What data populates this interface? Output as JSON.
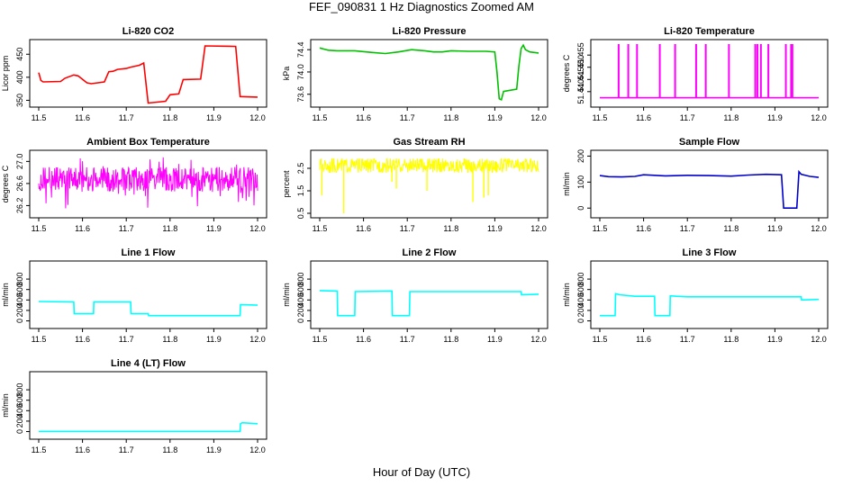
{
  "title": "FEF_090831  1 Hz Diagnostics Zoomed AM",
  "x_axis_title": "Hour of Day (UTC)",
  "x_ticks": [
    "11.5",
    "11.6",
    "11.7",
    "11.8",
    "11.9",
    "12.0"
  ],
  "chart_data": [
    {
      "type": "line",
      "title": "Li-820 CO2",
      "ylabel": "Licor ppm",
      "color": "#ff0000",
      "xlim": [
        11.5,
        12.0
      ],
      "ylim": [
        345,
        472
      ],
      "yticks": [
        "350",
        "400",
        "450"
      ],
      "ytick_values": [
        350,
        400,
        450
      ],
      "series": [
        {
          "x": [
            11.5,
            11.505,
            11.51,
            11.55,
            11.56,
            11.58,
            11.59,
            11.61,
            11.62,
            11.65,
            11.66,
            11.67,
            11.68,
            11.7,
            11.71,
            11.73,
            11.74,
            11.75,
            11.76,
            11.79,
            11.8,
            11.82,
            11.83,
            11.87,
            11.88,
            11.95,
            11.96,
            12.0
          ],
          "y": [
            410,
            393,
            390,
            391,
            398,
            405,
            403,
            388,
            386,
            390,
            412,
            413,
            417,
            419,
            422,
            426,
            431,
            344,
            345,
            348,
            362,
            364,
            395,
            396,
            468,
            467,
            358,
            357
          ]
        }
      ]
    },
    {
      "type": "line",
      "title": "Li-820 Pressure",
      "ylabel": "kPa",
      "color": "#00c000",
      "xlim": [
        11.5,
        12.0
      ],
      "ylim": [
        73.45,
        74.5
      ],
      "yticks": [
        "73.6",
        "74.0",
        "74.4"
      ],
      "ytick_values": [
        73.6,
        74.0,
        74.4
      ],
      "series": [
        {
          "x": [
            11.5,
            11.51,
            11.52,
            11.54,
            11.58,
            11.62,
            11.65,
            11.68,
            11.71,
            11.74,
            11.76,
            11.78,
            11.8,
            11.84,
            11.88,
            11.9,
            11.905,
            11.91,
            11.915,
            11.92,
            11.95,
            11.955,
            11.96,
            11.965,
            11.97,
            11.98,
            12.0
          ],
          "y": [
            74.43,
            74.41,
            74.39,
            74.38,
            74.38,
            74.35,
            74.33,
            74.36,
            74.4,
            74.38,
            74.36,
            74.36,
            74.38,
            74.37,
            74.37,
            74.36,
            74.0,
            73.52,
            73.5,
            73.65,
            73.69,
            74.1,
            74.42,
            74.48,
            74.4,
            74.36,
            74.34
          ]
        }
      ]
    },
    {
      "type": "line",
      "title": "Li-820 Temperature",
      "ylabel": "degrees C",
      "color": "#ff00ff",
      "xlim": [
        11.5,
        12.0
      ],
      "ylim": [
        51.4355,
        51.4595
      ],
      "yticks": [
        "51.440",
        "51.445",
        "51.450",
        "51.455"
      ],
      "ytick_values": [
        51.44,
        51.445,
        51.45,
        51.455
      ],
      "baseline": 51.4375,
      "spike_top": 51.4595,
      "spikes_x": [
        11.543,
        11.565,
        11.585,
        11.637,
        11.672,
        11.72,
        11.742,
        11.795,
        11.855,
        11.86,
        11.868,
        11.885,
        11.925,
        11.937,
        11.94
      ]
    },
    {
      "type": "line",
      "title": "Ambient Box Temperature",
      "ylabel": "degrees C",
      "color": "#ff00ff",
      "xlim": [
        11.5,
        12.0
      ],
      "ylim": [
        26.06,
        27.12
      ],
      "yticks": [
        "26.2",
        "26.6",
        "27.0"
      ],
      "ytick_values": [
        26.2,
        26.6,
        27.0
      ],
      "noise_band": {
        "center": 26.65,
        "low": 26.45,
        "high": 26.9,
        "spike_low": 26.12,
        "spike_high": 27.1
      }
    },
    {
      "type": "line",
      "title": "Gas Stream RH",
      "ylabel": "percent",
      "color": "#ffff00",
      "xlim": [
        11.5,
        12.0
      ],
      "ylim": [
        0.5,
        3.1
      ],
      "yticks": [
        "0.5",
        "1.5",
        "2.5"
      ],
      "ytick_values": [
        0.5,
        1.5,
        2.5
      ],
      "noise_band": {
        "center": 2.6,
        "low": 2.3,
        "high": 2.95
      },
      "dips": [
        {
          "x": 11.505,
          "y": 1.3
        },
        {
          "x": 11.555,
          "y": 0.5
        },
        {
          "x": 11.665,
          "y": 1.9
        },
        {
          "x": 11.675,
          "y": 1.6
        },
        {
          "x": 11.745,
          "y": 1.5
        },
        {
          "x": 11.85,
          "y": 1.0
        },
        {
          "x": 11.875,
          "y": 1.2
        },
        {
          "x": 11.885,
          "y": 1.3
        }
      ]
    },
    {
      "type": "line",
      "title": "Sample Flow",
      "ylabel": "ml/min",
      "color": "#0000cc",
      "xlim": [
        11.5,
        12.0
      ],
      "ylim": [
        -20,
        205
      ],
      "yticks": [
        "0",
        "100",
        "200"
      ],
      "ytick_values": [
        0,
        100,
        200
      ],
      "series": [
        {
          "x": [
            11.5,
            11.52,
            11.55,
            11.58,
            11.6,
            11.65,
            11.7,
            11.75,
            11.8,
            11.84,
            11.88,
            11.915,
            11.92,
            11.95,
            11.955,
            11.96,
            11.98,
            12.0
          ],
          "y": [
            125,
            121,
            120,
            122,
            128,
            124,
            126,
            125,
            123,
            127,
            130,
            128,
            0,
            0,
            140,
            130,
            122,
            118
          ]
        }
      ]
    },
    {
      "type": "line",
      "title": "Line 1 Flow",
      "ylabel": "ml/min",
      "color": "#00ffff",
      "xlim": [
        11.5,
        12.0
      ],
      "ylim": [
        -60,
        1060
      ],
      "yticks": [
        "0",
        "200",
        "400",
        "600",
        "800"
      ],
      "ytick_values": [
        0,
        200,
        400,
        600,
        800
      ],
      "series": [
        {
          "x": [
            11.5,
            11.58,
            11.581,
            11.625,
            11.626,
            11.71,
            11.711,
            11.75,
            11.751,
            11.96,
            11.961,
            12.0
          ],
          "y": [
            370,
            360,
            140,
            140,
            360,
            360,
            140,
            140,
            100,
            100,
            310,
            300
          ]
        }
      ]
    },
    {
      "type": "line",
      "title": "Line 2 Flow",
      "ylabel": "ml/min",
      "color": "#00ffff",
      "xlim": [
        11.5,
        12.0
      ],
      "ylim": [
        -60,
        1060
      ],
      "yticks": [
        "0",
        "200",
        "400",
        "600",
        "800"
      ],
      "ytick_values": [
        0,
        200,
        400,
        600,
        800
      ],
      "series": [
        {
          "x": [
            11.5,
            11.54,
            11.541,
            11.58,
            11.581,
            11.665,
            11.666,
            11.705,
            11.706,
            11.96,
            11.961,
            12.0
          ],
          "y": [
            580,
            570,
            100,
            100,
            560,
            570,
            100,
            100,
            560,
            560,
            500,
            510
          ]
        }
      ]
    },
    {
      "type": "line",
      "title": "Line 3 Flow",
      "ylabel": "ml/min",
      "color": "#00ffff",
      "xlim": [
        11.5,
        12.0
      ],
      "ylim": [
        -60,
        1060
      ],
      "yticks": [
        "0",
        "200",
        "400",
        "600",
        "800"
      ],
      "ytick_values": [
        0,
        200,
        400,
        600,
        800
      ],
      "series": [
        {
          "x": [
            11.5,
            11.535,
            11.536,
            11.545,
            11.58,
            11.625,
            11.626,
            11.66,
            11.661,
            11.675,
            11.7,
            11.96,
            11.961,
            12.0
          ],
          "y": [
            100,
            100,
            520,
            500,
            470,
            470,
            100,
            100,
            480,
            470,
            460,
            460,
            400,
            410
          ]
        }
      ]
    },
    {
      "type": "line",
      "title": "Line 4 (LT) Flow",
      "ylabel": "ml/min",
      "color": "#00ffff",
      "xlim": [
        11.5,
        12.0
      ],
      "ylim": [
        -60,
        1060
      ],
      "yticks": [
        "0",
        "200",
        "400",
        "600",
        "800"
      ],
      "ytick_values": [
        0,
        200,
        400,
        600,
        800
      ],
      "series": [
        {
          "x": [
            11.5,
            11.96,
            11.961,
            11.965,
            12.0
          ],
          "y": [
            2,
            2,
            150,
            170,
            150
          ]
        }
      ]
    }
  ]
}
